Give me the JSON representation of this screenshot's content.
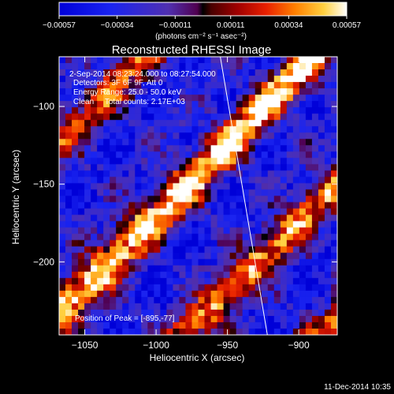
{
  "chart_data": {
    "type": "heatmap",
    "title": "Reconstructed RHESSI Image",
    "xlabel": "Heliocentric X (arcsec)",
    "ylabel": "Heliocentric Y (arcsec)",
    "x_ticks": [
      -1050,
      -1000,
      -950,
      -900
    ],
    "x_tick_labels": [
      "−1050",
      "−1000",
      "−950",
      "−900"
    ],
    "y_ticks": [
      -100,
      -150,
      -200
    ],
    "y_tick_labels": [
      "−100",
      "−150",
      "−200"
    ],
    "xlim": [
      -1068,
      -873
    ],
    "ylim": [
      -247,
      -68
    ],
    "colorbar": {
      "range": [
        -0.00057,
        0.00057
      ],
      "tick_labels": [
        "-0.00057",
        "-0.00034",
        "-0.00011",
        "0.00011",
        "0.00034",
        "0.00057"
      ],
      "unit_label": "(photons cm⁻² s⁻¹ asec⁻²)"
    },
    "annotations": [
      "2-Sep-2014 08:23:24.000 to 08:27:54.000",
      "Detectors: 3F 6F 9F, Att 0",
      "Energy Range: 25.0 - 50.0 keV",
      "Clean     Total counts: 2.17E+03",
      "Position of Peak = [-895,-77]"
    ],
    "limb_line": {
      "x": [
        -955,
        -922
      ],
      "y": [
        -68,
        -247
      ]
    },
    "colors": {
      "background": "#000000",
      "axes": "#ffffff",
      "limb": "#ffffff"
    },
    "footer": "11-Dec-2014 10:35"
  }
}
